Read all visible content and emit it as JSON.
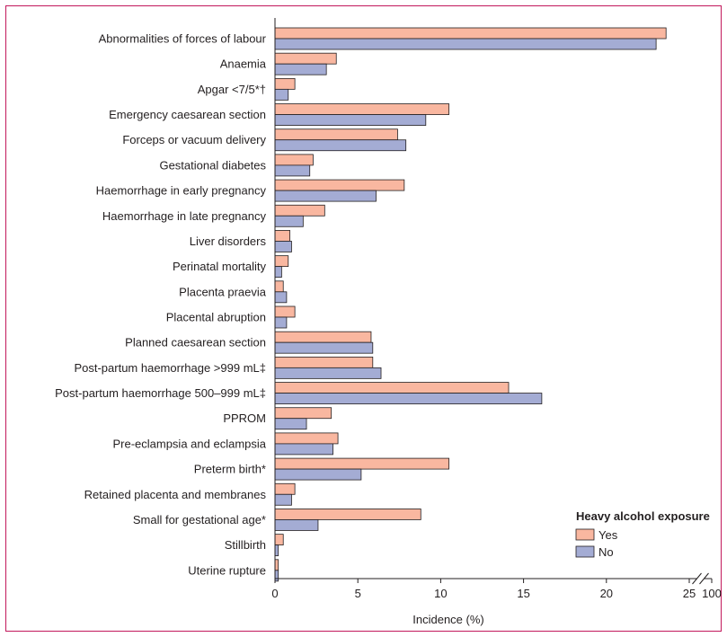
{
  "chart_data": {
    "type": "bar",
    "orientation": "horizontal",
    "categories": [
      "Abnormalities of forces of labour",
      "Anaemia",
      "Apgar <7/5*†",
      "Emergency caesarean section",
      "Forceps or vacuum delivery",
      "Gestational diabetes",
      "Haemorrhage in early pregnancy",
      "Haemorrhage in late pregnancy",
      "Liver disorders",
      "Perinatal mortality",
      "Placenta praevia",
      "Placental abruption",
      "Planned caesarean section",
      "Post-partum haemorrhage >999 mL‡",
      "Post-partum haemorrhage 500–999 mL‡",
      "PPROM",
      "Pre-eclampsia and eclampsia",
      "Preterm birth*",
      "Retained placenta and membranes",
      "Small for gestational age*",
      "Stillbirth",
      "Uterine rupture"
    ],
    "series": [
      {
        "name": "Yes",
        "color": "#f9b7a0",
        "values": [
          23.6,
          3.7,
          1.2,
          10.5,
          7.4,
          2.3,
          7.8,
          3.0,
          0.9,
          0.8,
          0.5,
          1.2,
          5.8,
          5.9,
          14.1,
          3.4,
          3.8,
          10.5,
          1.2,
          8.8,
          0.5,
          0.2
        ]
      },
      {
        "name": "No",
        "color": "#a4acd4",
        "values": [
          23.0,
          3.1,
          0.8,
          9.1,
          7.9,
          2.1,
          6.1,
          1.7,
          1.0,
          0.4,
          0.7,
          0.7,
          5.9,
          6.4,
          16.1,
          1.9,
          3.5,
          5.2,
          1.0,
          2.6,
          0.2,
          0.2
        ]
      }
    ],
    "xlabel": "Incidence (%)",
    "xlim": [
      0,
      25
    ],
    "xticks": [
      0,
      5,
      10,
      15,
      20,
      25
    ],
    "xtick_labels": [
      "0",
      "5",
      "10",
      "15",
      "20",
      "25"
    ],
    "axis_break_label": "100",
    "legend": {
      "title": "Heavy alcohol exposure",
      "position": "bottom-right",
      "entries": [
        "Yes",
        "No"
      ]
    },
    "grid": false
  }
}
